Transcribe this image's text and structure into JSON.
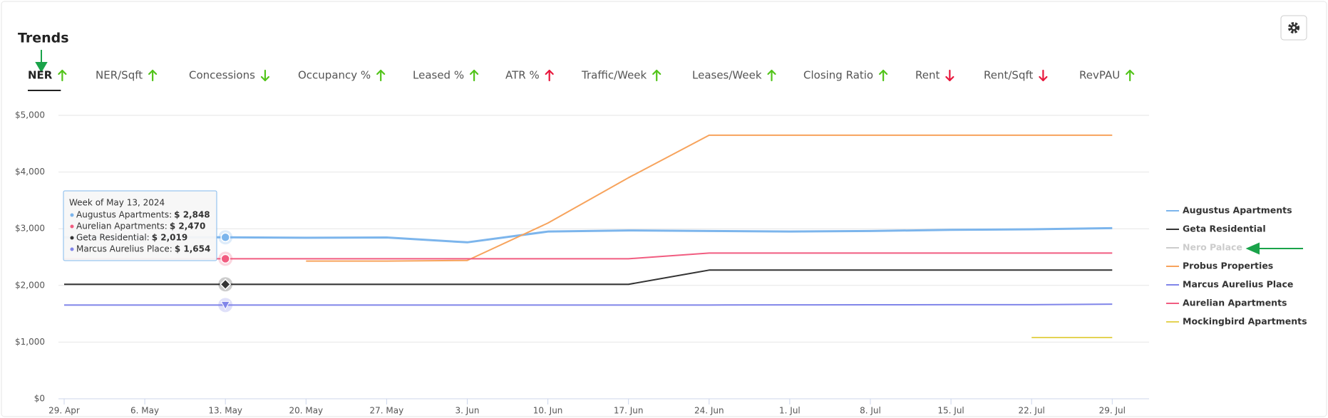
{
  "header": {
    "title": "Trends"
  },
  "tabs": [
    {
      "label": "NER",
      "trend": "up",
      "color": "#52c41a"
    },
    {
      "label": "NER/Sqft",
      "trend": "up",
      "color": "#52c41a"
    },
    {
      "label": "Concessions",
      "trend": "down",
      "color": "#52c41a"
    },
    {
      "label": "Occupancy %",
      "trend": "up",
      "color": "#52c41a"
    },
    {
      "label": "Leased %",
      "trend": "up",
      "color": "#52c41a"
    },
    {
      "label": "ATR %",
      "trend": "up",
      "color": "#e8173c"
    },
    {
      "label": "Traffic/Week",
      "trend": "up",
      "color": "#52c41a"
    },
    {
      "label": "Leases/Week",
      "trend": "up",
      "color": "#52c41a"
    },
    {
      "label": "Closing Ratio",
      "trend": "up",
      "color": "#52c41a"
    },
    {
      "label": "Rent",
      "trend": "down",
      "color": "#e8173c"
    },
    {
      "label": "Rent/Sqft",
      "trend": "down",
      "color": "#e8173c"
    },
    {
      "label": "RevPAU",
      "trend": "up",
      "color": "#52c41a"
    }
  ],
  "active_tab": 0,
  "chart_data": {
    "type": "line",
    "categories": [
      "29. Apr",
      "6. May",
      "13. May",
      "20. May",
      "27. May",
      "3. Jun",
      "10. Jun",
      "17. Jun",
      "24. Jun",
      "1. Jul",
      "8. Jul",
      "15. Jul",
      "22. Jul",
      "29. Jul"
    ],
    "ylim": [
      0,
      5000
    ],
    "yticks": [
      {
        "value": 0,
        "label": "$0"
      },
      {
        "value": 1000,
        "label": "$1,000"
      },
      {
        "value": 2000,
        "label": "$2,000"
      },
      {
        "value": 3000,
        "label": "$3,000"
      },
      {
        "value": 4000,
        "label": "$4,000"
      },
      {
        "value": 5000,
        "label": "$5,000"
      }
    ],
    "grid": true,
    "legend": "right",
    "series": [
      {
        "name": "Augustus Apartments",
        "color": "#7cb5ec",
        "visible": true,
        "values": [
          2848,
          2848,
          2848,
          2840,
          2845,
          2760,
          2950,
          2970,
          2960,
          2950,
          2960,
          2980,
          2990,
          3010
        ]
      },
      {
        "name": "Geta Residential",
        "color": "#333333",
        "visible": true,
        "values": [
          2019,
          2019,
          2019,
          2019,
          2019,
          2019,
          2019,
          2019,
          2270,
          2270,
          2270,
          2270,
          2270,
          2270
        ]
      },
      {
        "name": "Nero Palace",
        "color": "#cccccc",
        "visible": false,
        "values": [
          null,
          null,
          null,
          null,
          null,
          null,
          null,
          null,
          null,
          null,
          null,
          null,
          null,
          null
        ]
      },
      {
        "name": "Probus Properties",
        "color": "#f7a35c",
        "visible": true,
        "values": [
          null,
          null,
          null,
          2430,
          2430,
          2440,
          3100,
          3900,
          4650,
          4650,
          4650,
          4650,
          4650,
          4650
        ]
      },
      {
        "name": "Marcus Aurelius Place",
        "color": "#8085e9",
        "visible": true,
        "values": [
          1654,
          1654,
          1654,
          1654,
          1654,
          1654,
          1654,
          1654,
          1654,
          1656,
          1658,
          1660,
          1660,
          1670
        ]
      },
      {
        "name": "Aurelian Apartments",
        "color": "#f15c80",
        "visible": true,
        "values": [
          2470,
          2470,
          2470,
          2470,
          2470,
          2470,
          2470,
          2470,
          2570,
          2570,
          2570,
          2570,
          2570,
          2570
        ]
      },
      {
        "name": "Mockingbird Apartments",
        "color": "#e4d354",
        "visible": true,
        "values": [
          null,
          null,
          null,
          null,
          null,
          null,
          null,
          null,
          null,
          null,
          null,
          null,
          1080,
          1080
        ]
      }
    ],
    "tooltip": {
      "title": "Week of May 13, 2024",
      "rows": [
        {
          "name": "Augustus Apartments: ",
          "label": "$ 2,848"
        },
        {
          "name": "Aurelian Apartments: ",
          "label": "$ 2,470"
        },
        {
          "name": "Geta Residential: ",
          "label": "$ 2,019"
        },
        {
          "name": "Marcus Aurelius Place: ",
          "label": "$ 1,654"
        }
      ]
    }
  }
}
